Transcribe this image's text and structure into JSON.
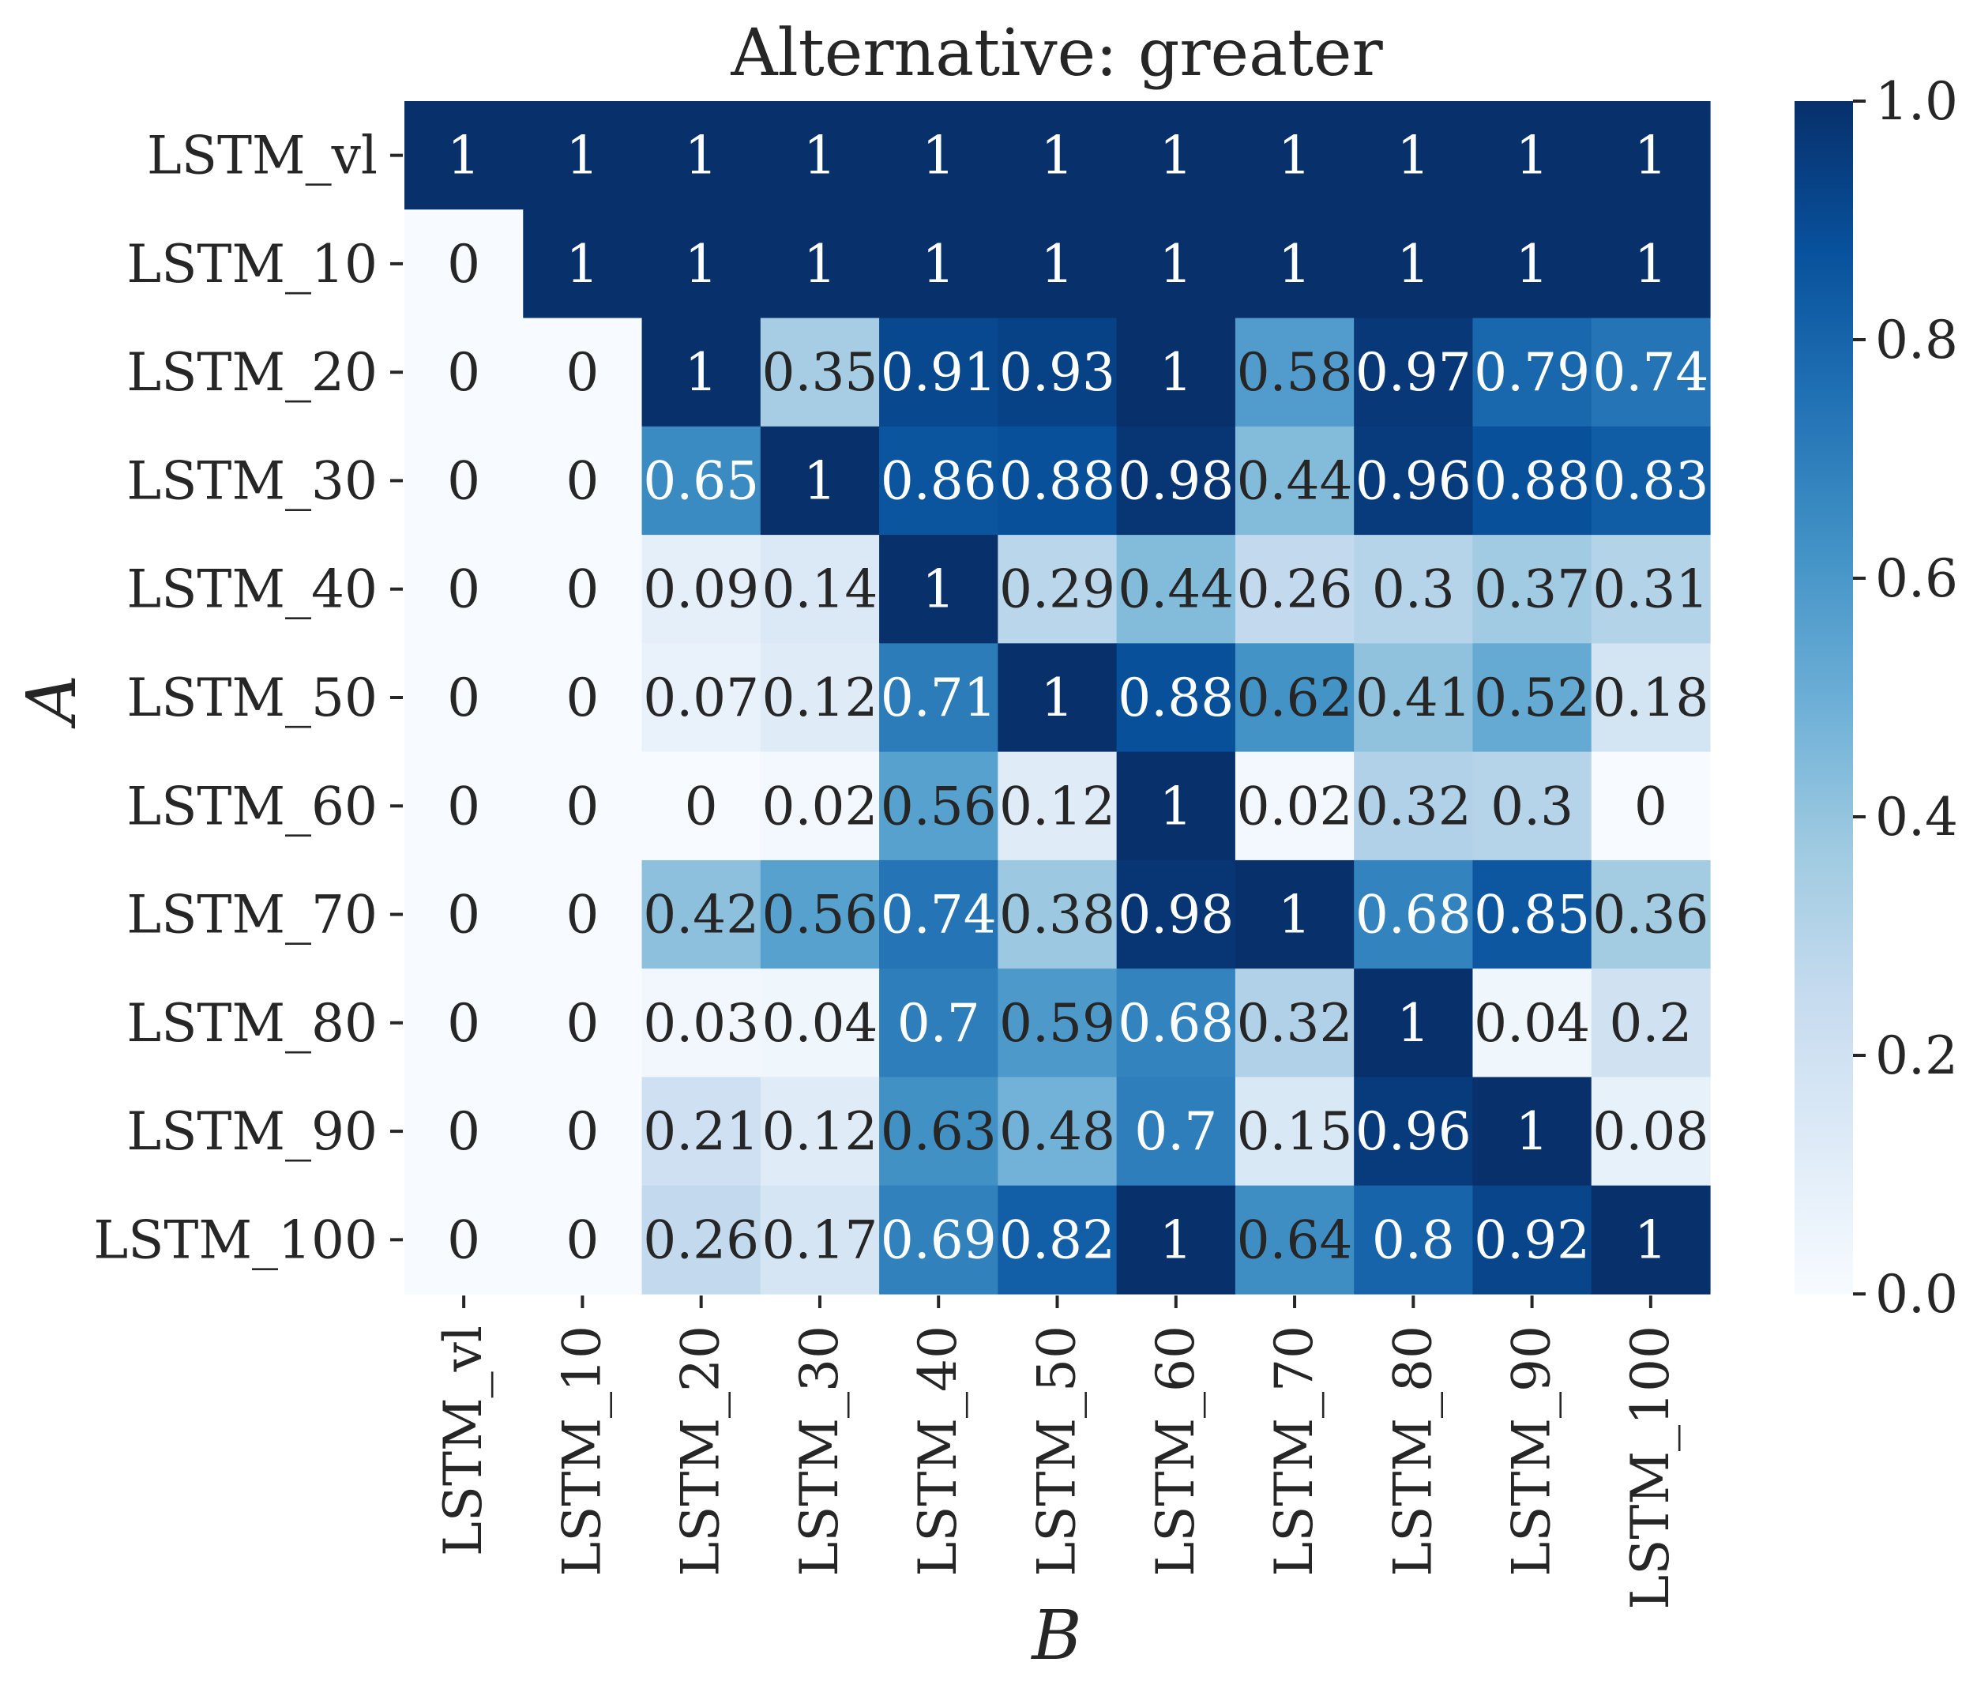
{
  "chart_data": {
    "type": "heatmap",
    "title": "Alternative: greater",
    "xlabel": "B",
    "ylabel": "A",
    "x_categories": [
      "LSTM_vl",
      "LSTM_10",
      "LSTM_20",
      "LSTM_30",
      "LSTM_40",
      "LSTM_50",
      "LSTM_60",
      "LSTM_70",
      "LSTM_80",
      "LSTM_90",
      "LSTM_100"
    ],
    "y_categories": [
      "LSTM_vl",
      "LSTM_10",
      "LSTM_20",
      "LSTM_30",
      "LSTM_40",
      "LSTM_50",
      "LSTM_60",
      "LSTM_70",
      "LSTM_80",
      "LSTM_90",
      "LSTM_100"
    ],
    "values": [
      [
        1,
        1,
        1,
        1,
        1,
        1,
        1,
        1,
        1,
        1,
        1
      ],
      [
        0,
        1,
        1,
        1,
        1,
        1,
        1,
        1,
        1,
        1,
        1
      ],
      [
        0,
        0,
        1,
        0.35,
        0.91,
        0.93,
        1,
        0.58,
        0.97,
        0.79,
        0.74
      ],
      [
        0,
        0,
        0.65,
        1,
        0.86,
        0.88,
        0.98,
        0.44,
        0.96,
        0.88,
        0.83
      ],
      [
        0,
        0,
        0.09,
        0.14,
        1,
        0.29,
        0.44,
        0.26,
        0.3,
        0.37,
        0.31
      ],
      [
        0,
        0,
        0.07,
        0.12,
        0.71,
        1,
        0.88,
        0.62,
        0.41,
        0.52,
        0.18
      ],
      [
        0,
        0,
        0,
        0.02,
        0.56,
        0.12,
        1,
        0.02,
        0.32,
        0.3,
        0
      ],
      [
        0,
        0,
        0.42,
        0.56,
        0.74,
        0.38,
        0.98,
        1,
        0.68,
        0.85,
        0.36
      ],
      [
        0,
        0,
        0.03,
        0.04,
        0.7,
        0.59,
        0.68,
        0.32,
        1,
        0.04,
        0.2
      ],
      [
        0,
        0,
        0.21,
        0.12,
        0.63,
        0.48,
        0.7,
        0.15,
        0.96,
        1,
        0.08
      ],
      [
        0,
        0,
        0.26,
        0.17,
        0.69,
        0.82,
        1,
        0.64,
        0.8,
        0.92,
        1
      ]
    ],
    "value_range": [
      0,
      1
    ],
    "colormap": "Blues",
    "colorbar": {
      "ticks": [
        0.0,
        0.2,
        0.4,
        0.6,
        0.8,
        1.0
      ],
      "tick_labels": [
        "0.0",
        "0.2",
        "0.4",
        "0.6",
        "0.8",
        "1.0"
      ]
    },
    "annotations": true
  }
}
